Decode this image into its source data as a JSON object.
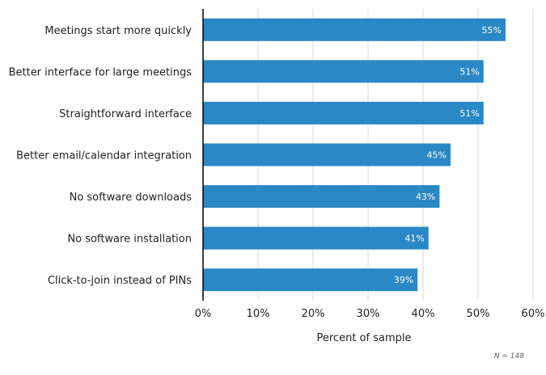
{
  "chart_data": {
    "type": "bar",
    "orientation": "horizontal",
    "title": "",
    "categories": [
      "Meetings start more quickly",
      "Better interface for large meetings",
      "Straightforward interface",
      "Better email/calendar integration",
      "No software downloads",
      "No software installation",
      "Click-to-join instead of PINs"
    ],
    "values": [
      55,
      51,
      51,
      45,
      43,
      41,
      39
    ],
    "value_labels": [
      "55%",
      "51%",
      "51%",
      "45%",
      "43%",
      "41%",
      "39%"
    ],
    "xlabel": "Percent of sample",
    "ylabel": "",
    "xlim": [
      0,
      60
    ],
    "xticks": [
      0,
      10,
      20,
      30,
      40,
      50,
      60
    ],
    "xtick_labels": [
      "0%",
      "10%",
      "20%",
      "30%",
      "40%",
      "50%",
      "60%"
    ],
    "grid": true,
    "bar_color": "#2a88c6",
    "note": "N = 148"
  }
}
